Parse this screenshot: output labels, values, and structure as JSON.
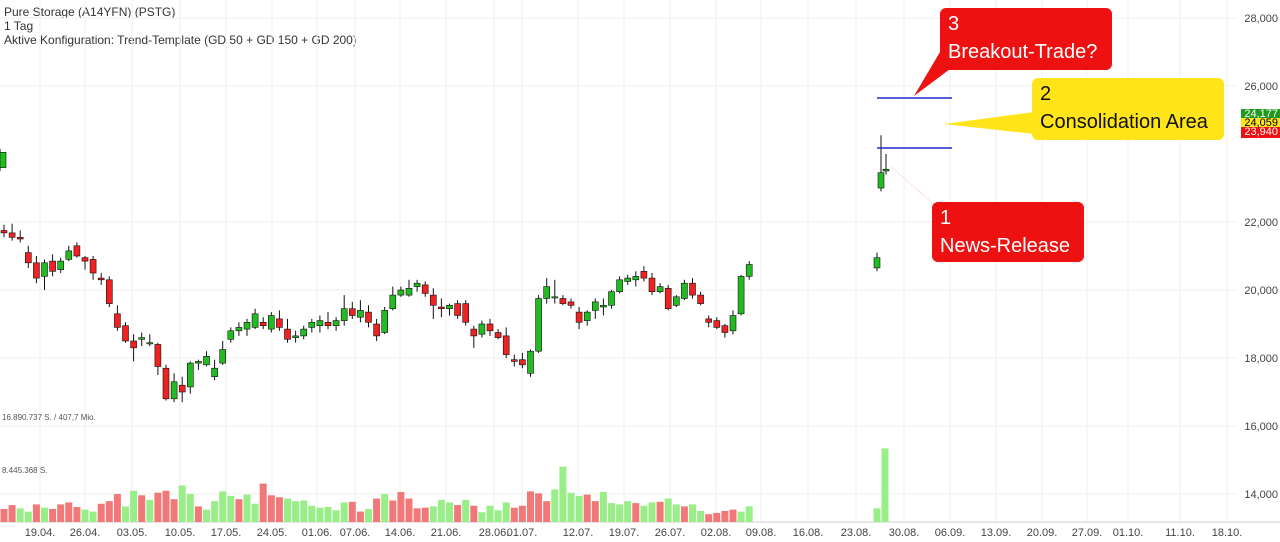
{
  "header": {
    "title": "Pure Storage (A14YFN) (PSTG)",
    "interval": "1 Tag",
    "config": "Aktive Konfiguration: Trend-Template (GD 50 + GD 150 + GD 200)"
  },
  "volume_labels": {
    "max": "16.890.737 S. / 407,7 Mio.",
    "mid": "8.445.368 S."
  },
  "price_tags": [
    {
      "text": "24,177",
      "bg": "#1f9a1f",
      "fg": "#ffffff"
    },
    {
      "text": "24,059",
      "bg": "#ffe41a",
      "fg": "#000000"
    },
    {
      "text": "23,940",
      "bg": "#ee1111",
      "fg": "#ffffff"
    }
  ],
  "annotations": [
    {
      "number": "3",
      "text": "Breakout-Trade?",
      "color": "#ee1111"
    },
    {
      "number": "2",
      "text": "Consolidation Area",
      "color": "#ffe41a"
    },
    {
      "number": "1",
      "text": "News-Release",
      "color": "#ee1111"
    }
  ],
  "chart_data": {
    "type": "candlestick",
    "y_axis": {
      "ticks": [
        "28,000",
        "26,000",
        "22,000",
        "20,000",
        "18,000",
        "16,000",
        "14,000"
      ],
      "tick_values": [
        28,
        26,
        22,
        20,
        18,
        16,
        14
      ]
    },
    "x_axis": {
      "ticks": [
        "19.04.",
        "26.04.",
        "03.05.",
        "10.05.",
        "17.05.",
        "24.05.",
        "01.06.",
        "07.06.",
        "14.06.",
        "21.06.",
        "28.06.",
        "01.07.",
        "12.07.",
        "19.07.",
        "26.07.",
        "02.08.",
        "09.08.",
        "16.08.",
        "23.08.",
        "30.08.",
        "06.09.",
        "13.09.",
        "20.09.",
        "27.09.",
        "01.10.",
        "11.10.",
        "18.10."
      ]
    },
    "colors": {
      "up": "#22bb22",
      "down": "#ee2222",
      "vol_up": "#99ee88",
      "vol_down": "#f07878",
      "box": "#1a2ecc"
    },
    "candles": [
      [
        21.75,
        21.92,
        21.55,
        21.68
      ],
      [
        21.68,
        21.95,
        21.45,
        21.55
      ],
      [
        21.55,
        21.75,
        21.4,
        21.5
      ],
      [
        21.1,
        21.3,
        20.65,
        20.8
      ],
      [
        20.8,
        21.0,
        20.2,
        20.35
      ],
      [
        20.4,
        20.9,
        20.0,
        20.8
      ],
      [
        20.85,
        21.05,
        20.4,
        20.55
      ],
      [
        20.6,
        20.95,
        20.5,
        20.85
      ],
      [
        20.9,
        21.3,
        20.85,
        21.15
      ],
      [
        21.3,
        21.4,
        20.95,
        21.0
      ],
      [
        20.95,
        21.0,
        20.6,
        20.85
      ],
      [
        20.9,
        21.0,
        20.3,
        20.5
      ],
      [
        20.35,
        20.5,
        20.15,
        20.3
      ],
      [
        20.3,
        20.4,
        19.5,
        19.6
      ],
      [
        19.3,
        19.55,
        18.8,
        18.9
      ],
      [
        18.95,
        19.05,
        18.45,
        18.5
      ],
      [
        18.5,
        18.7,
        17.9,
        18.3
      ],
      [
        18.55,
        18.75,
        18.35,
        18.6
      ],
      [
        18.45,
        18.7,
        18.35,
        18.45
      ],
      [
        18.4,
        18.45,
        17.5,
        17.75
      ],
      [
        17.7,
        17.8,
        16.75,
        16.8
      ],
      [
        16.8,
        17.55,
        16.7,
        17.3
      ],
      [
        17.2,
        17.45,
        16.7,
        17.0
      ],
      [
        17.15,
        17.9,
        16.95,
        17.85
      ],
      [
        17.85,
        17.95,
        17.65,
        17.9
      ],
      [
        17.8,
        18.2,
        17.75,
        18.05
      ],
      [
        17.45,
        17.95,
        17.35,
        17.7
      ],
      [
        17.85,
        18.5,
        17.8,
        18.25
      ],
      [
        18.55,
        18.9,
        18.45,
        18.8
      ],
      [
        18.8,
        19.05,
        18.65,
        18.9
      ],
      [
        18.85,
        19.15,
        18.65,
        19.05
      ],
      [
        18.9,
        19.45,
        18.85,
        19.3
      ],
      [
        19.05,
        19.2,
        18.85,
        18.95
      ],
      [
        18.85,
        19.35,
        18.75,
        19.25
      ],
      [
        19.15,
        19.4,
        18.8,
        18.9
      ],
      [
        18.85,
        19.15,
        18.45,
        18.55
      ],
      [
        18.6,
        18.8,
        18.45,
        18.65
      ],
      [
        18.65,
        18.95,
        18.55,
        18.85
      ],
      [
        18.9,
        19.15,
        18.75,
        19.05
      ],
      [
        18.95,
        19.25,
        18.75,
        19.1
      ],
      [
        19.05,
        19.35,
        18.85,
        18.95
      ],
      [
        18.95,
        19.2,
        18.8,
        19.1
      ],
      [
        19.1,
        19.85,
        18.95,
        19.45
      ],
      [
        19.45,
        19.65,
        19.15,
        19.25
      ],
      [
        19.2,
        19.7,
        19.05,
        19.4
      ],
      [
        19.35,
        19.55,
        18.9,
        19.05
      ],
      [
        19.0,
        19.15,
        18.5,
        18.65
      ],
      [
        18.75,
        19.5,
        18.7,
        19.4
      ],
      [
        19.45,
        20.1,
        19.4,
        19.85
      ],
      [
        19.85,
        20.1,
        19.8,
        20.0
      ],
      [
        19.85,
        20.3,
        19.8,
        20.05
      ],
      [
        20.1,
        20.3,
        19.95,
        20.2
      ],
      [
        20.15,
        20.25,
        19.8,
        19.9
      ],
      [
        19.85,
        20.05,
        19.15,
        19.55
      ],
      [
        19.5,
        19.75,
        19.2,
        19.45
      ],
      [
        19.45,
        19.6,
        19.25,
        19.55
      ],
      [
        19.6,
        19.7,
        19.15,
        19.25
      ],
      [
        19.6,
        19.7,
        18.95,
        19.05
      ],
      [
        18.85,
        18.95,
        18.3,
        18.65
      ],
      [
        18.7,
        19.1,
        18.6,
        19.0
      ],
      [
        19.0,
        19.15,
        18.65,
        18.8
      ],
      [
        18.75,
        18.85,
        18.55,
        18.6
      ],
      [
        18.65,
        18.9,
        18.0,
        18.1
      ],
      [
        17.95,
        18.1,
        17.75,
        17.9
      ],
      [
        17.95,
        18.15,
        17.7,
        17.8
      ],
      [
        17.55,
        18.25,
        17.45,
        18.2
      ],
      [
        18.2,
        19.85,
        18.15,
        19.75
      ],
      [
        19.75,
        20.35,
        19.6,
        20.1
      ],
      [
        19.8,
        20.3,
        19.6,
        19.8
      ],
      [
        19.75,
        19.85,
        19.55,
        19.6
      ],
      [
        19.65,
        19.75,
        19.45,
        19.55
      ],
      [
        19.35,
        19.5,
        18.85,
        19.05
      ],
      [
        19.1,
        19.4,
        18.95,
        19.35
      ],
      [
        19.4,
        19.75,
        19.15,
        19.65
      ],
      [
        19.5,
        19.75,
        19.25,
        19.55
      ],
      [
        19.55,
        20.0,
        19.45,
        19.95
      ],
      [
        19.95,
        20.4,
        19.9,
        20.3
      ],
      [
        20.25,
        20.45,
        20.15,
        20.35
      ],
      [
        20.3,
        20.55,
        20.1,
        20.4
      ],
      [
        20.55,
        20.7,
        20.25,
        20.35
      ],
      [
        20.35,
        20.5,
        19.85,
        19.95
      ],
      [
        19.95,
        20.2,
        19.9,
        20.1
      ],
      [
        20.05,
        20.15,
        19.4,
        19.45
      ],
      [
        19.55,
        19.85,
        19.5,
        19.8
      ],
      [
        19.75,
        20.3,
        19.7,
        20.2
      ],
      [
        20.2,
        20.35,
        19.75,
        19.85
      ],
      [
        19.85,
        19.95,
        19.55,
        19.6
      ],
      [
        19.15,
        19.25,
        18.9,
        19.05
      ],
      [
        19.1,
        19.2,
        18.85,
        18.9
      ],
      [
        18.95,
        19.0,
        18.6,
        18.75
      ],
      [
        18.8,
        19.4,
        18.7,
        19.25
      ],
      [
        19.3,
        20.45,
        19.25,
        20.4
      ],
      [
        20.4,
        20.85,
        20.3,
        20.75
      ],
      [
        20.65,
        21.1,
        20.55,
        20.95
      ],
      [
        23.0,
        24.55,
        22.9,
        23.45
      ],
      [
        23.5,
        24.0,
        23.4,
        23.55
      ],
      [
        23.6,
        24.15,
        23.5,
        24.05
      ]
    ],
    "volume": [
      [
        2.0,
        "down"
      ],
      [
        2.6,
        "down"
      ],
      [
        2.1,
        "up"
      ],
      [
        1.6,
        "up"
      ],
      [
        2.7,
        "down"
      ],
      [
        2.2,
        "up"
      ],
      [
        2.0,
        "down"
      ],
      [
        2.7,
        "down"
      ],
      [
        3.0,
        "down"
      ],
      [
        2.3,
        "down"
      ],
      [
        1.9,
        "up"
      ],
      [
        1.6,
        "up"
      ],
      [
        2.8,
        "down"
      ],
      [
        3.2,
        "down"
      ],
      [
        4.3,
        "down"
      ],
      [
        2.4,
        "up"
      ],
      [
        4.8,
        "up"
      ],
      [
        4.1,
        "down"
      ],
      [
        3.4,
        "up"
      ],
      [
        4.5,
        "down"
      ],
      [
        4.8,
        "down"
      ],
      [
        3.5,
        "down"
      ],
      [
        5.6,
        "up"
      ],
      [
        4.3,
        "up"
      ],
      [
        2.4,
        "down"
      ],
      [
        1.9,
        "up"
      ],
      [
        3.2,
        "up"
      ],
      [
        4.7,
        "up"
      ],
      [
        4.0,
        "up"
      ],
      [
        3.5,
        "down"
      ],
      [
        4.2,
        "up"
      ],
      [
        2.8,
        "up"
      ],
      [
        5.9,
        "down"
      ],
      [
        4.1,
        "down"
      ],
      [
        3.8,
        "down"
      ],
      [
        3.6,
        "up"
      ],
      [
        3.2,
        "up"
      ],
      [
        3.3,
        "up"
      ],
      [
        2.5,
        "up"
      ],
      [
        2.2,
        "up"
      ],
      [
        2.3,
        "up"
      ],
      [
        1.8,
        "up"
      ],
      [
        3.0,
        "up"
      ],
      [
        3.1,
        "down"
      ],
      [
        1.6,
        "down"
      ],
      [
        2.0,
        "up"
      ],
      [
        3.6,
        "down"
      ],
      [
        4.3,
        "up"
      ],
      [
        3.3,
        "down"
      ],
      [
        4.6,
        "down"
      ],
      [
        3.6,
        "down"
      ],
      [
        2.1,
        "down"
      ],
      [
        2.2,
        "down"
      ],
      [
        2.4,
        "up"
      ],
      [
        3.4,
        "up"
      ],
      [
        3.0,
        "up"
      ],
      [
        2.6,
        "down"
      ],
      [
        3.4,
        "up"
      ],
      [
        2.5,
        "down"
      ],
      [
        1.5,
        "up"
      ],
      [
        2.5,
        "up"
      ],
      [
        1.8,
        "up"
      ],
      [
        3.0,
        "up"
      ],
      [
        2.2,
        "down"
      ],
      [
        2.5,
        "down"
      ],
      [
        4.7,
        "down"
      ],
      [
        4.4,
        "down"
      ],
      [
        3.2,
        "down"
      ],
      [
        5.0,
        "up"
      ],
      [
        8.5,
        "up"
      ],
      [
        4.5,
        "up"
      ],
      [
        4.0,
        "up"
      ],
      [
        4.2,
        "down"
      ],
      [
        3.2,
        "down"
      ],
      [
        4.6,
        "up"
      ],
      [
        2.9,
        "up"
      ],
      [
        2.7,
        "up"
      ],
      [
        3.2,
        "up"
      ],
      [
        2.9,
        "down"
      ],
      [
        2.5,
        "up"
      ],
      [
        3.0,
        "up"
      ],
      [
        3.1,
        "down"
      ],
      [
        3.6,
        "up"
      ],
      [
        2.7,
        "up"
      ],
      [
        2.4,
        "down"
      ],
      [
        2.7,
        "up"
      ],
      [
        1.7,
        "up"
      ],
      [
        1.2,
        "down"
      ],
      [
        1.4,
        "down"
      ],
      [
        1.7,
        "down"
      ],
      [
        1.9,
        "down"
      ],
      [
        1.6,
        "up"
      ],
      [
        2.4,
        "up"
      ],
      [
        2.1,
        "up"
      ],
      [
        2.8,
        "up"
      ],
      [
        11.3,
        "up"
      ],
      [
        5.6,
        "up"
      ]
    ]
  }
}
